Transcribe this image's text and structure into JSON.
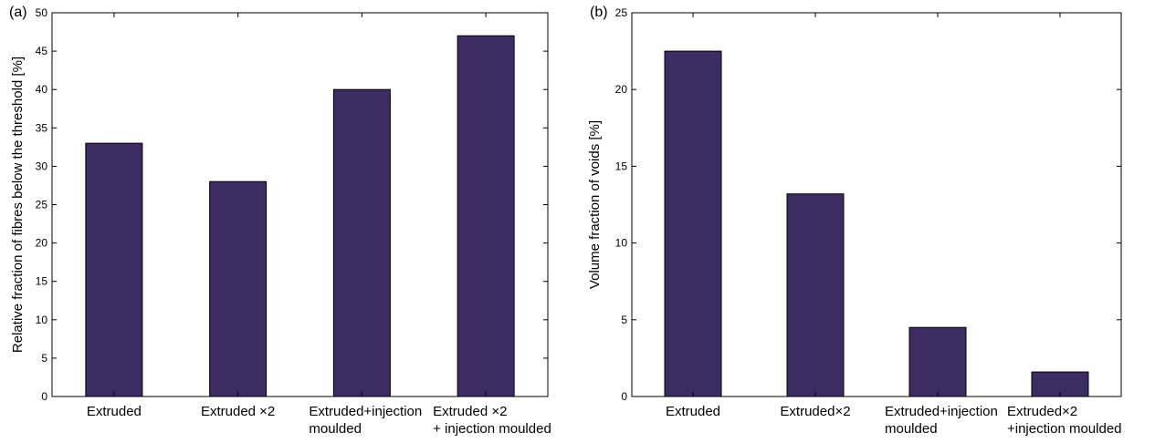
{
  "chart_data": [
    {
      "type": "bar",
      "panel_label": "(a)",
      "categories": [
        [
          "Extruded"
        ],
        [
          "Extruded ×2"
        ],
        [
          "Extruded+injection",
          "moulded"
        ],
        [
          "Extruded ×2",
          "+ injection moulded"
        ]
      ],
      "values": [
        33,
        28,
        40,
        47
      ],
      "ylabel": "Relative fraction of fibres below the threshold [%]",
      "ylim": [
        0,
        50
      ],
      "yticks": [
        0,
        5,
        10,
        15,
        20,
        25,
        30,
        35,
        40,
        45,
        50
      ],
      "bar_color": "#3d2b63",
      "grid": false
    },
    {
      "type": "bar",
      "panel_label": "(b)",
      "categories": [
        [
          "Extruded"
        ],
        [
          "Extruded×2"
        ],
        [
          "Extruded+injection",
          "moulded"
        ],
        [
          "Extruded×2",
          "+injection moulded"
        ]
      ],
      "values": [
        22.5,
        13.2,
        4.5,
        1.6
      ],
      "ylabel": "Volume fraction of voids [%]",
      "ylim": [
        0,
        25
      ],
      "yticks": [
        0,
        5,
        10,
        15,
        20,
        25
      ],
      "bar_color": "#3d2b63",
      "grid": false
    }
  ]
}
